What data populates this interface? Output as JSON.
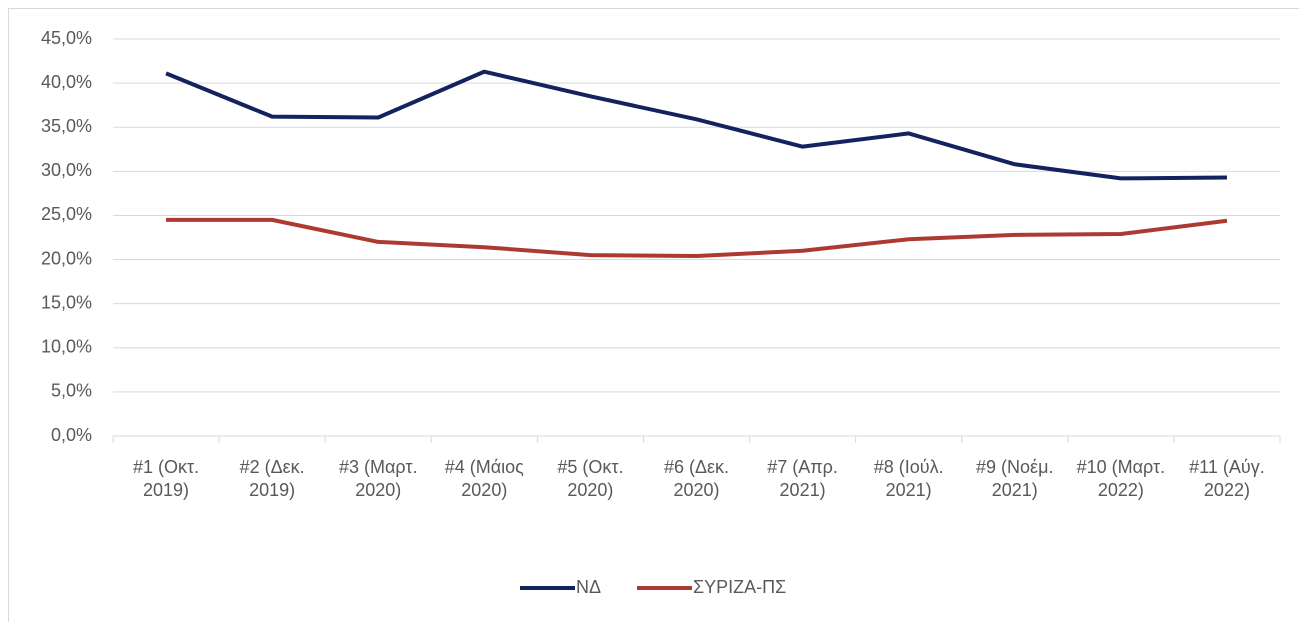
{
  "chart_data": {
    "type": "line",
    "categories": [
      "#1 (Οκτ. 2019)",
      "#2 (Δεκ. 2019)",
      "#3 (Μαρτ. 2020)",
      "#4 (Μάιος 2020)",
      "#5 (Οκτ. 2020)",
      "#6 (Δεκ. 2020)",
      "#7 (Απρ. 2021)",
      "#8 (Ιούλ. 2021)",
      "#9 (Νοέμ. 2021)",
      "#10 (Μαρτ. 2022)",
      "#11 (Αύγ. 2022)"
    ],
    "series": [
      {
        "name": "ΝΔ",
        "color": "#14225e",
        "values": [
          41.1,
          36.2,
          36.1,
          41.3,
          38.5,
          35.9,
          32.8,
          34.3,
          30.8,
          29.2,
          29.3
        ]
      },
      {
        "name": "ΣΥΡΙΖΑ-ΠΣ",
        "color": "#ad3a31",
        "values": [
          24.5,
          24.5,
          22.0,
          21.4,
          20.5,
          20.4,
          21.0,
          22.3,
          22.8,
          22.9,
          24.4
        ]
      }
    ],
    "ylim": [
      0,
      45
    ],
    "yticks": [
      {
        "value": 0,
        "label": "0,0%"
      },
      {
        "value": 5,
        "label": "5,0%"
      },
      {
        "value": 10,
        "label": "10,0%"
      },
      {
        "value": 15,
        "label": "15,0%"
      },
      {
        "value": 20,
        "label": "20,0%"
      },
      {
        "value": 25,
        "label": "25,0%"
      },
      {
        "value": 30,
        "label": "30,0%"
      },
      {
        "value": 35,
        "label": "35,0%"
      },
      {
        "value": 40,
        "label": "40,0%"
      },
      {
        "value": 45,
        "label": "45,0%"
      }
    ],
    "grid": true,
    "legend": "bottom"
  }
}
